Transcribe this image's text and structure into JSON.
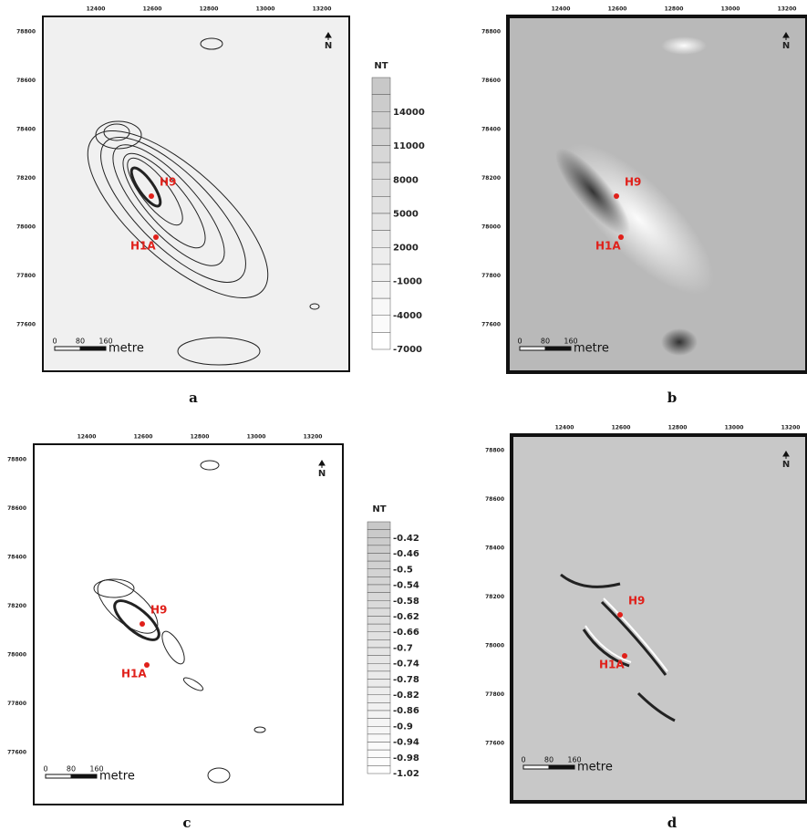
{
  "panels": [
    {
      "label": "a",
      "xticks": [
        12400,
        12600,
        12800,
        13000,
        13200
      ],
      "yticks": [
        78800,
        78600,
        78400,
        78200,
        78000,
        77800,
        77600
      ],
      "markers": [
        "H9",
        "H1A"
      ],
      "north": "N",
      "scale": {
        "ticks": [
          0,
          80,
          160
        ],
        "unit": "metre"
      },
      "colorbar": {
        "unit": "NT",
        "ticks": [
          14000,
          11000,
          8000,
          5000,
          2000,
          -1000,
          -4000,
          -7000
        ]
      }
    },
    {
      "label": "b",
      "xticks": [
        12400,
        12600,
        12800,
        13000,
        13200
      ],
      "yticks": [
        78800,
        78600,
        78400,
        78200,
        78000,
        77800,
        77600
      ],
      "markers": [
        "H9",
        "H1A"
      ],
      "north": "N",
      "scale": {
        "ticks": [
          0,
          80,
          160
        ],
        "unit": "metre"
      }
    },
    {
      "label": "c",
      "xticks": [
        12400,
        12600,
        12800,
        13000,
        13200
      ],
      "yticks": [
        78800,
        78600,
        78400,
        78200,
        78000,
        77800,
        77600
      ],
      "markers": [
        "H9",
        "H1A"
      ],
      "north": "N",
      "scale": {
        "ticks": [
          0,
          80,
          160
        ],
        "unit": "metre"
      },
      "colorbar": {
        "unit": "NT",
        "ticks": [
          -0.42,
          -0.46,
          -0.5,
          -0.54,
          -0.58,
          -0.62,
          -0.66,
          -0.7,
          -0.74,
          -0.78,
          -0.82,
          -0.86,
          -0.9,
          -0.94,
          -0.98,
          -1.02
        ]
      }
    },
    {
      "label": "d",
      "xticks": [
        12400,
        12600,
        12800,
        13000,
        13200
      ],
      "yticks": [
        78800,
        78600,
        78400,
        78200,
        78000,
        77800,
        77600
      ],
      "markers": [
        "H9",
        "H1A"
      ],
      "north": "N",
      "scale": {
        "ticks": [
          0,
          80,
          160
        ],
        "unit": "metre"
      }
    }
  ]
}
